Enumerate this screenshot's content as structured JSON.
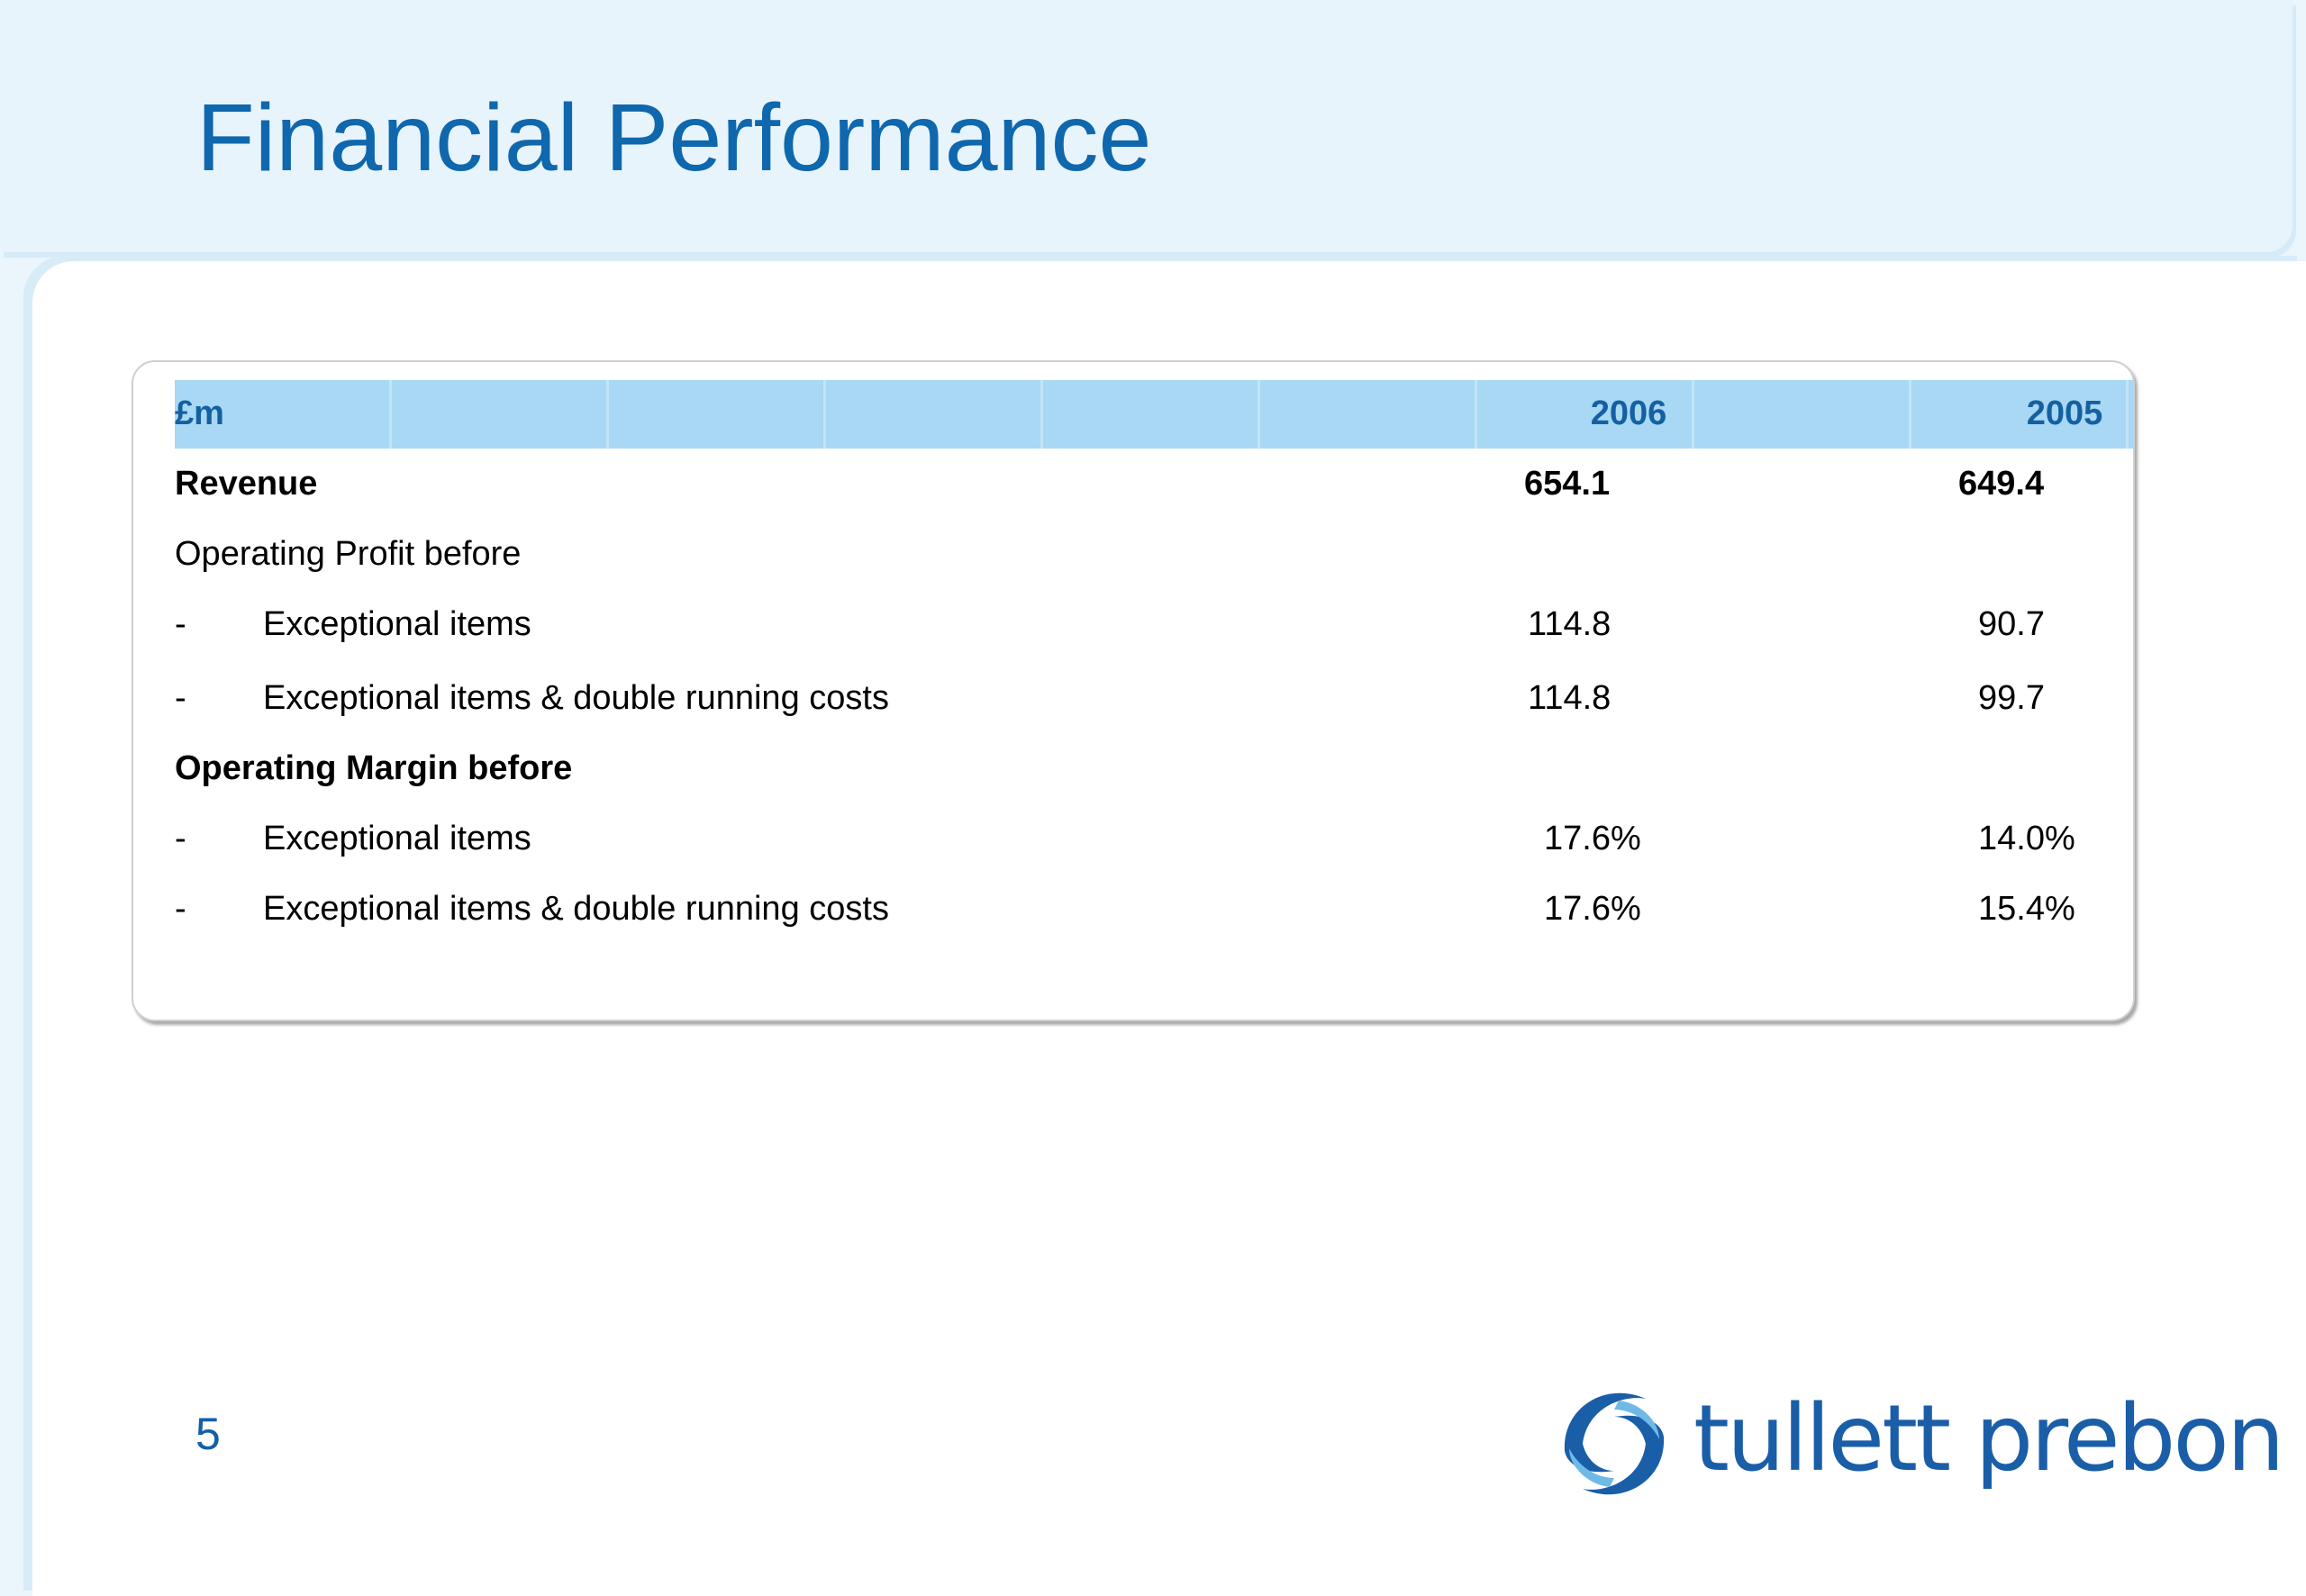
{
  "slide": {
    "title": "Financial Performance",
    "page_number": "5"
  },
  "table": {
    "headers": {
      "unit": "£m",
      "col1": "2006",
      "col2": "2005"
    },
    "rows": [
      {
        "bullet": "",
        "label": "Revenue",
        "v2006": "654.1",
        "v2005": "649.4",
        "bold": true
      },
      {
        "bullet": "",
        "label": "Operating Profit before",
        "v2006": "",
        "v2005": "",
        "bold": false
      },
      {
        "bullet": "-",
        "label": "Exceptional items",
        "v2006": "114.8",
        "v2005": "90.7",
        "bold": false
      },
      {
        "bullet": "-",
        "label": "Exceptional items & double running costs",
        "v2006": "114.8",
        "v2005": "99.7",
        "bold": false
      },
      {
        "bullet": "",
        "label": "Operating Margin before",
        "v2006": "",
        "v2005": "",
        "bold": true
      },
      {
        "bullet": "-",
        "label": "Exceptional items",
        "v2006": "17.6%",
        "v2005": "14.0%",
        "bold": false
      },
      {
        "bullet": "-",
        "label": "Exceptional items & double running costs",
        "v2006": "17.6%",
        "v2005": "15.4%",
        "bold": false
      }
    ]
  },
  "logo": {
    "text": "tullett prebon",
    "icon": "swirl-logo-icon"
  },
  "colors": {
    "title": "#0f67ad",
    "header_band": "#a8d8f3",
    "logo": "#1a5ea8"
  }
}
